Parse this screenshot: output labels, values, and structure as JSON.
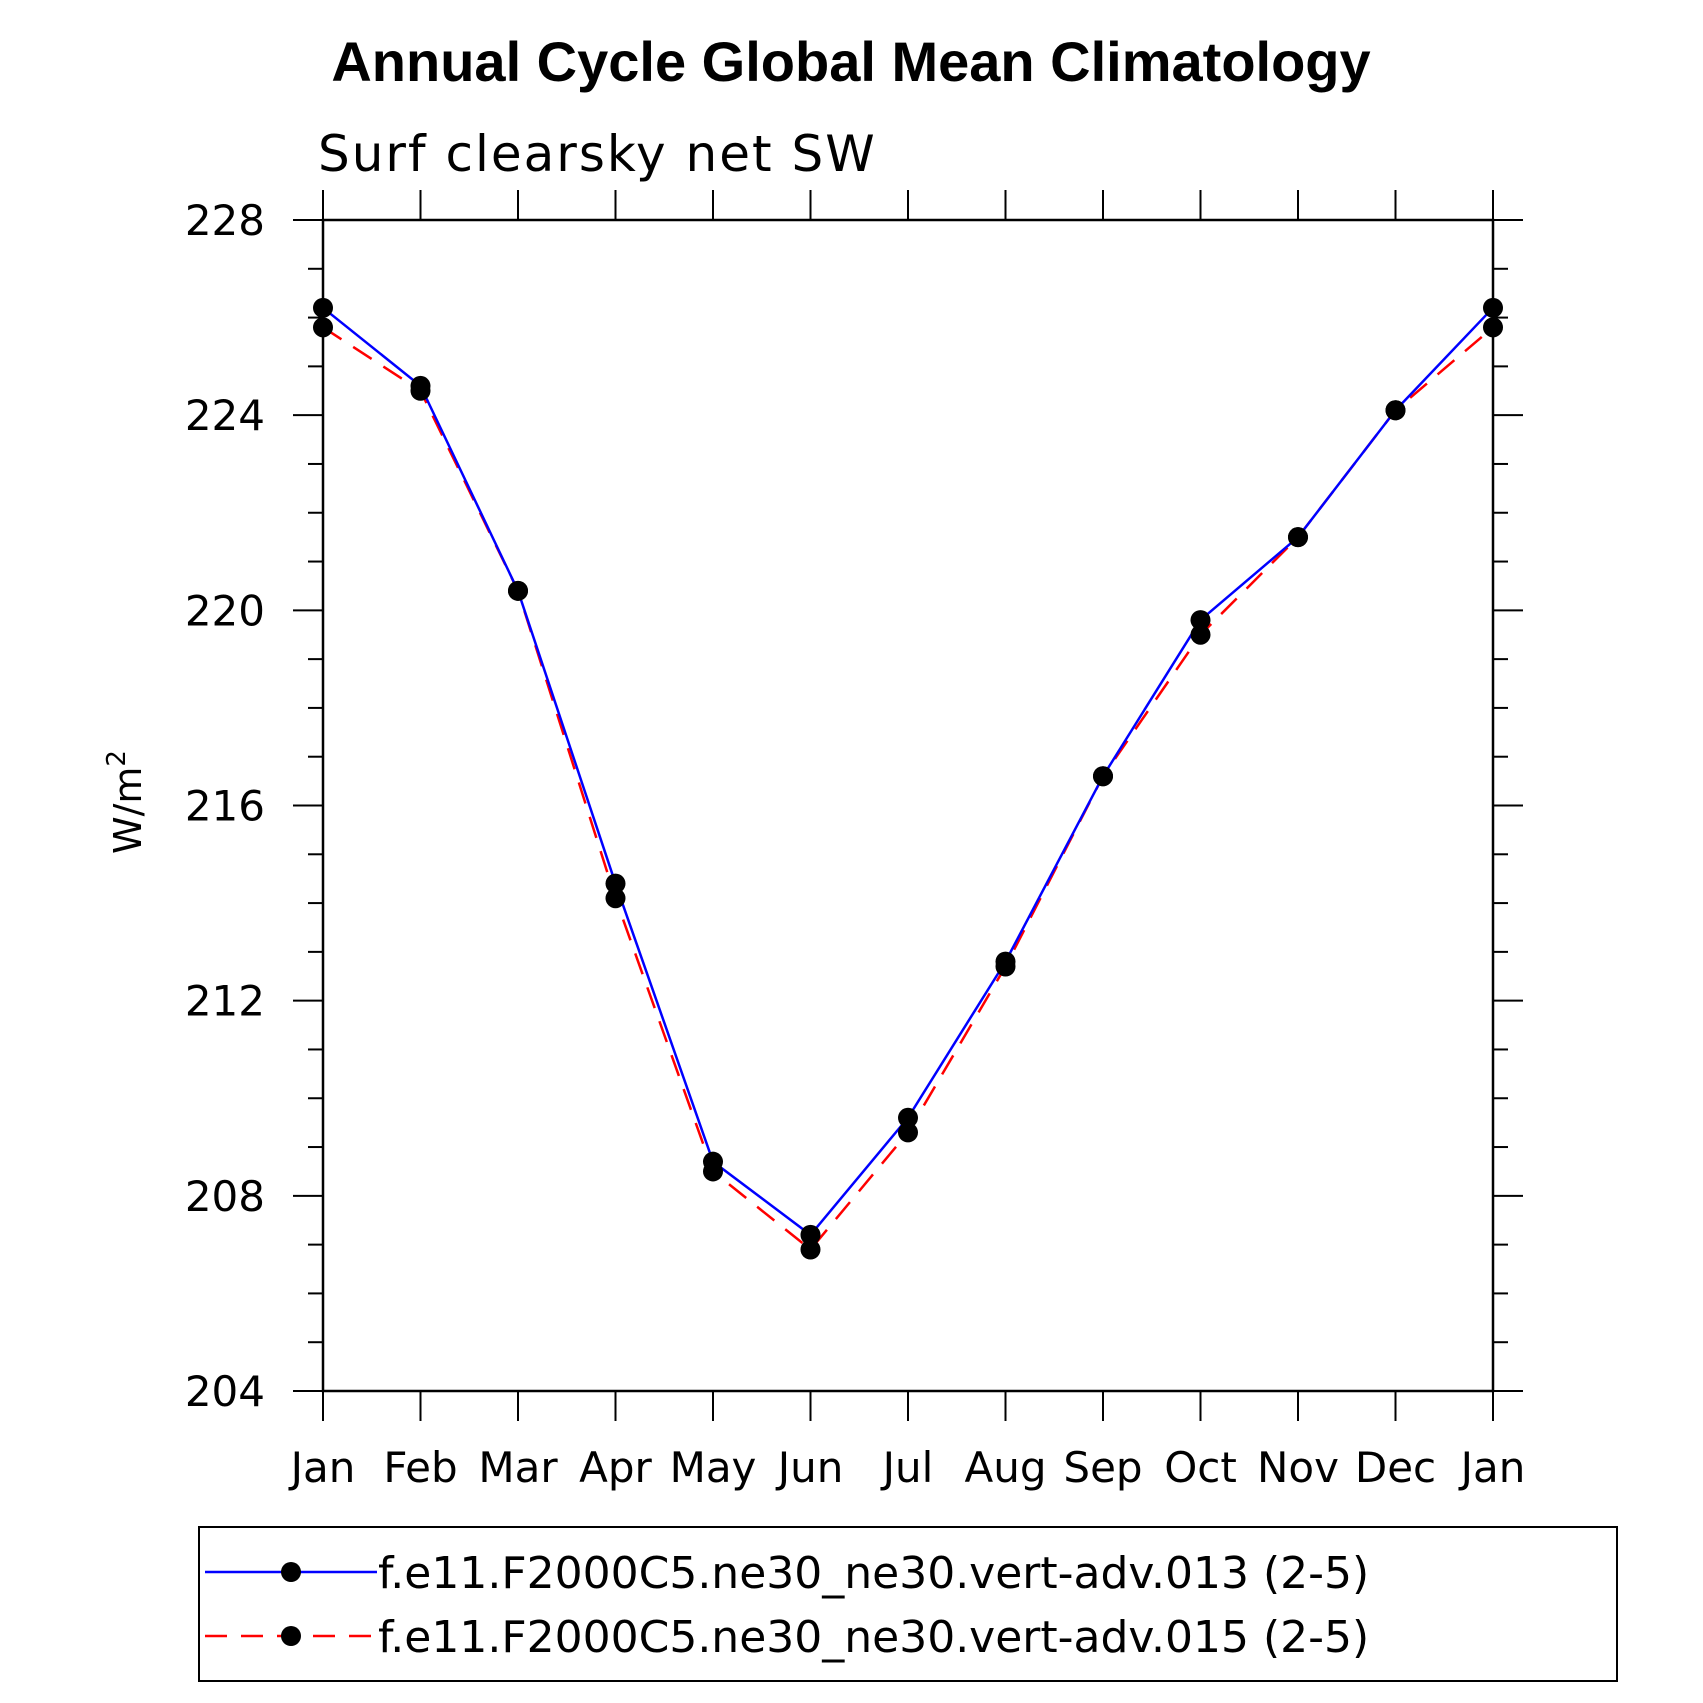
{
  "chart_data": {
    "type": "line",
    "title": "Annual Cycle Global Mean Climatology",
    "subtitle": "Surf clearsky net SW",
    "ylabel": "W/m",
    "ylabel_sup": "2",
    "xlabel": "",
    "categories": [
      "Jan",
      "Feb",
      "Mar",
      "Apr",
      "May",
      "Jun",
      "Jul",
      "Aug",
      "Sep",
      "Oct",
      "Nov",
      "Dec",
      "Jan"
    ],
    "ylim": [
      204,
      228
    ],
    "yticks": [
      204,
      208,
      212,
      216,
      220,
      224,
      228
    ],
    "y_minor_step": 1,
    "grid": false,
    "legend_position": "bottom",
    "series": [
      {
        "name": "f.e11.F2000C5.ne30_ne30.vert-adv.013 (2-5)",
        "color": "#0000ff",
        "line_style": "solid",
        "marker": "filled-circle",
        "values": [
          226.2,
          224.6,
          220.4,
          214.4,
          208.7,
          207.2,
          209.6,
          212.8,
          216.6,
          219.8,
          221.5,
          224.1,
          226.2
        ]
      },
      {
        "name": "f.e11.F2000C5.ne30_ne30.vert-adv.015 (2-5)",
        "color": "#ff0000",
        "line_style": "dashed",
        "marker": "filled-circle",
        "values": [
          225.8,
          224.5,
          220.4,
          214.1,
          208.5,
          206.9,
          209.3,
          212.7,
          216.6,
          219.5,
          221.5,
          224.1,
          225.8
        ]
      }
    ]
  }
}
